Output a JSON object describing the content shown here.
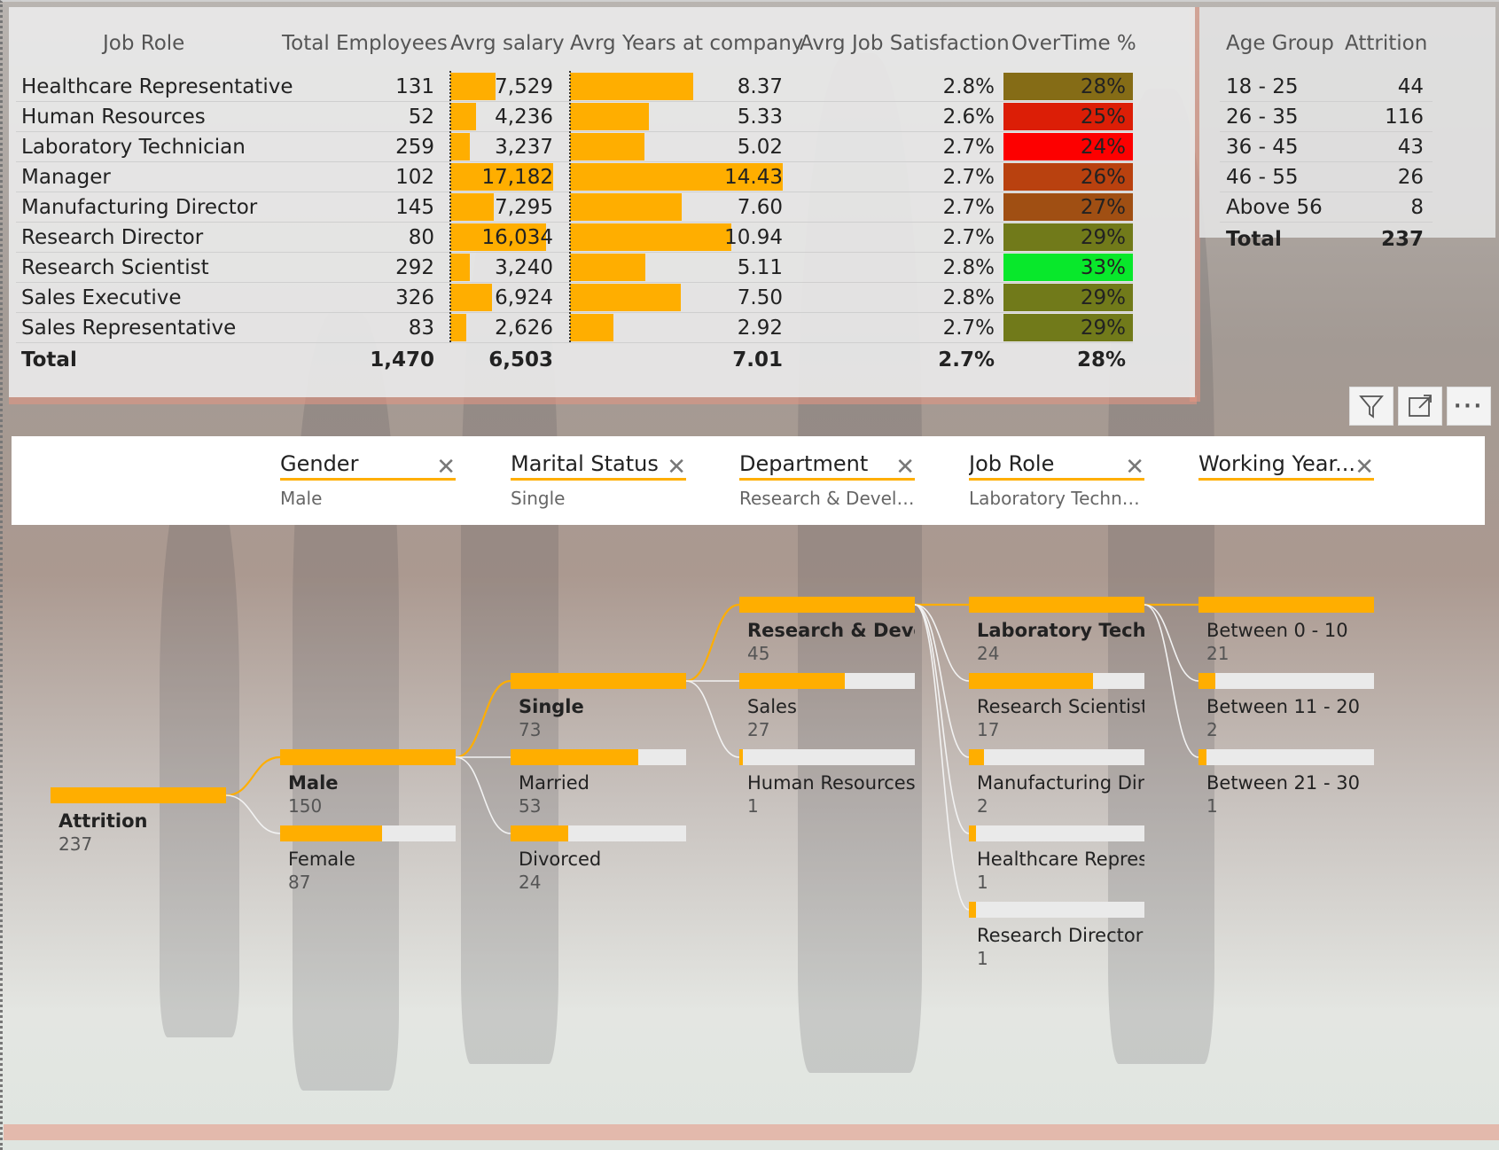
{
  "colors": {
    "accent": "#ffae00",
    "selected_link": "#ffae00"
  },
  "job_table": {
    "headers": [
      "Job Role",
      "Total Employees",
      "Avrg salary",
      "Avrg Years at company",
      "Avrg Job Satisfaction",
      "OverTime %"
    ],
    "rows": [
      {
        "role": "Healthcare Representative",
        "employees": "131",
        "salary": "7,529",
        "salary_v": 7529,
        "years": "8.37",
        "years_v": 8.37,
        "satisfaction": "2.8%",
        "overtime": "28%",
        "ot_color": "#856c16"
      },
      {
        "role": "Human Resources",
        "employees": "52",
        "salary": "4,236",
        "salary_v": 4236,
        "years": "5.33",
        "years_v": 5.33,
        "satisfaction": "2.6%",
        "overtime": "25%",
        "ot_color": "#dc1e06"
      },
      {
        "role": "Laboratory Technician",
        "employees": "259",
        "salary": "3,237",
        "salary_v": 3237,
        "years": "5.02",
        "years_v": 5.02,
        "satisfaction": "2.7%",
        "overtime": "24%",
        "ot_color": "#fd0000"
      },
      {
        "role": "Manager",
        "employees": "102",
        "salary": "17,182",
        "salary_v": 17182,
        "years": "14.43",
        "years_v": 14.43,
        "satisfaction": "2.7%",
        "overtime": "26%",
        "ot_color": "#b9410f"
      },
      {
        "role": "Manufacturing Director",
        "employees": "145",
        "salary": "7,295",
        "salary_v": 7295,
        "years": "7.60",
        "years_v": 7.6,
        "satisfaction": "2.7%",
        "overtime": "27%",
        "ot_color": "#a04f13"
      },
      {
        "role": "Research Director",
        "employees": "80",
        "salary": "16,034",
        "salary_v": 16034,
        "years": "10.94",
        "years_v": 10.94,
        "satisfaction": "2.7%",
        "overtime": "29%",
        "ot_color": "#717a1a"
      },
      {
        "role": "Research Scientist",
        "employees": "292",
        "salary": "3,240",
        "salary_v": 3240,
        "years": "5.11",
        "years_v": 5.11,
        "satisfaction": "2.8%",
        "overtime": "33%",
        "ot_color": "#08e82b"
      },
      {
        "role": "Sales Executive",
        "employees": "326",
        "salary": "6,924",
        "salary_v": 6924,
        "years": "7.50",
        "years_v": 7.5,
        "satisfaction": "2.8%",
        "overtime": "29%",
        "ot_color": "#717a1a"
      },
      {
        "role": "Sales Representative",
        "employees": "83",
        "salary": "2,626",
        "salary_v": 2626,
        "years": "2.92",
        "years_v": 2.92,
        "satisfaction": "2.7%",
        "overtime": "29%",
        "ot_color": "#717a1a"
      }
    ],
    "total": {
      "role": "Total",
      "employees": "1,470",
      "salary": "6,503",
      "years": "7.01",
      "satisfaction": "2.7%",
      "overtime": "28%"
    }
  },
  "age_table": {
    "headers": [
      "Age Group",
      "Attrition"
    ],
    "rows": [
      {
        "group": "18 - 25",
        "value": "44"
      },
      {
        "group": "26 - 35",
        "value": "116"
      },
      {
        "group": "36 - 45",
        "value": "43"
      },
      {
        "group": "46 - 55",
        "value": "26"
      },
      {
        "group": "Above 56",
        "value": "8"
      }
    ],
    "total": {
      "group": "Total",
      "value": "237"
    }
  },
  "visual_header": {
    "filter_icon": "filter-icon",
    "focus_icon": "focus-mode-icon",
    "more_icon": "more-options-icon"
  },
  "drill_filters": [
    {
      "title": "Gender",
      "value": "Male"
    },
    {
      "title": "Marital Status",
      "value": "Single"
    },
    {
      "title": "Department",
      "value": "Research & Develo..."
    },
    {
      "title": "Job Role",
      "value": "Laboratory Technic..."
    },
    {
      "title": "Working Year...",
      "value": ""
    }
  ],
  "tree": {
    "root": {
      "label": "Attrition",
      "value": "237",
      "v": 237
    },
    "levels": [
      [
        {
          "label": "Male",
          "value": "150",
          "v": 150,
          "selected": true
        },
        {
          "label": "Female",
          "value": "87",
          "v": 87
        }
      ],
      [
        {
          "label": "Single",
          "value": "73",
          "v": 73,
          "selected": true
        },
        {
          "label": "Married",
          "value": "53",
          "v": 53
        },
        {
          "label": "Divorced",
          "value": "24",
          "v": 24
        }
      ],
      [
        {
          "label": "Research & Devel...",
          "value": "45",
          "v": 45,
          "selected": true
        },
        {
          "label": "Sales",
          "value": "27",
          "v": 27
        },
        {
          "label": "Human Resources",
          "value": "1",
          "v": 1
        }
      ],
      [
        {
          "label": "Laboratory Techn...",
          "value": "24",
          "v": 24,
          "selected": true
        },
        {
          "label": "Research Scientist",
          "value": "17",
          "v": 17
        },
        {
          "label": "Manufacturing Dir...",
          "value": "2",
          "v": 2
        },
        {
          "label": "Healthcare Repres...",
          "value": "1",
          "v": 1
        },
        {
          "label": "Research Director",
          "value": "1",
          "v": 1
        }
      ],
      [
        {
          "label": "Between 0 - 10",
          "value": "21",
          "v": 21
        },
        {
          "label": "Between 11 - 20",
          "value": "2",
          "v": 2
        },
        {
          "label": "Between 21 - 30",
          "value": "1",
          "v": 1
        }
      ]
    ]
  }
}
